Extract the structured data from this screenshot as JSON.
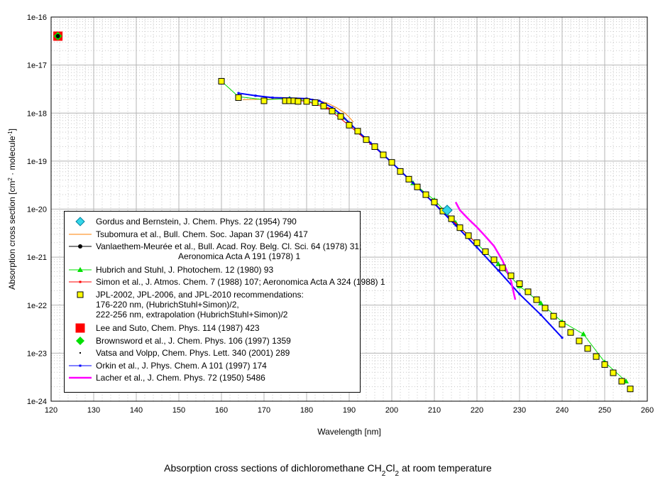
{
  "chart_data": {
    "type": "scatter",
    "title": "Absorption cross sections of dichloromethane CH2Cl2 at room temperature",
    "title_parts": [
      "Absorption cross sections of dichloromethane CH",
      "2",
      "Cl",
      "2",
      " at room temperature"
    ],
    "xlabel": "Wavelength [nm]",
    "ylabel_parts": [
      "Absorption cross section [cm",
      "2",
      " · molecule",
      "-1",
      "]"
    ],
    "xlim": [
      120,
      260
    ],
    "ylim": [
      1e-24,
      1e-16
    ],
    "yscale": "log",
    "grid": true,
    "legend_placement": "lower-left",
    "x_ticks": [
      "120",
      "130",
      "140",
      "150",
      "160",
      "170",
      "180",
      "190",
      "200",
      "210",
      "220",
      "230",
      "240",
      "250",
      "260"
    ],
    "y_ticks": [
      "1e-24",
      "1e-23",
      "1e-22",
      "1e-21",
      "1e-20",
      "1e-19",
      "1e-18",
      "1e-17",
      "1e-16"
    ],
    "series": [
      {
        "name": "Gordus and Bernstein, J. Chem. Phys. 22 (1954) 790",
        "color": "#33d6e8",
        "marker": "diamond",
        "line": false,
        "x": [
          213
        ],
        "y": [
          9.5e-21
        ]
      },
      {
        "name": "Tsubomura et al., Bull. Chem. Soc. Japan 37 (1964) 417",
        "color": "#ff8000",
        "marker": "none",
        "line": true,
        "x": [
          165,
          170,
          175,
          180,
          183,
          185,
          187,
          189,
          190,
          191
        ],
        "y": [
          1.9e-18,
          1.95e-18,
          2e-18,
          1.95e-18,
          1.8e-18,
          1.6e-18,
          1.3e-18,
          1e-18,
          8.2e-19,
          6.5e-19
        ]
      },
      {
        "name": "Vanlaethem-Meurée et al., Bull. Acad. Roy. Belg. Cl. Sci. 64 (1978) 31;\n                                   Aeronomica Acta A 191 (1978) 1",
        "color": "#000000",
        "marker": "dot",
        "line": true,
        "x": [
          121.6
        ],
        "y": [
          4e-17
        ]
      },
      {
        "name": "Hubrich and Stuhl, J. Photochem. 12 (1980) 93",
        "color": "#00e000",
        "marker": "triangle",
        "line": true,
        "x": [
          160,
          164,
          170,
          176,
          180,
          184,
          188,
          192,
          196,
          200,
          205,
          210,
          215,
          220,
          225,
          230,
          235,
          240,
          245,
          250,
          255
        ],
        "y": [
          4.6e-18,
          2.2e-18,
          1.9e-18,
          2e-18,
          1.8e-18,
          1.45e-18,
          8.8e-19,
          4.3e-19,
          2.05e-19,
          9.6e-20,
          3.5e-20,
          1.55e-20,
          5.2e-21,
          1.9e-21,
          7.2e-22,
          2.5e-22,
          1.1e-22,
          4.5e-23,
          2.5e-23,
          6.5e-24,
          2.6e-24
        ]
      },
      {
        "name": "Simon et al., J. Atmos. Chem. 7 (1988) 107; Aeronomica Acta A 324 (1988) 1",
        "color": "#ff0000",
        "marker": "small",
        "line": true,
        "x": [
          176,
          180,
          185,
          190,
          195,
          200,
          205,
          210,
          215,
          220
        ],
        "y": [
          1.9e-18,
          1.75e-18,
          1.25e-18,
          5.5e-19,
          2.3e-19,
          9.2e-20,
          3.5e-20,
          1.35e-20,
          5e-21,
          1.9e-21
        ]
      },
      {
        "name": "JPL-2002, JPL-2006, and JPL-2010 recommendations:\n176-220 nm, (HubrichStuhl+Simon)/2,\n222-256 nm, extrapolation (HubrichStuhl+Simon)/2",
        "color": "#ffff00",
        "marker": "square",
        "line": false,
        "x": [
          160,
          164,
          170,
          175,
          176,
          177,
          178,
          180,
          182,
          184,
          186,
          188,
          190,
          192,
          194,
          196,
          198,
          200,
          202,
          204,
          206,
          208,
          210,
          212,
          214,
          216,
          218,
          220,
          222,
          224,
          226,
          228,
          230,
          232,
          234,
          236,
          238,
          240,
          242,
          244,
          246,
          248,
          250,
          252,
          254,
          256
        ],
        "y": [
          4.6e-18,
          2.1e-18,
          1.8e-18,
          1.8e-18,
          1.8e-18,
          1.8e-18,
          1.75e-18,
          1.75e-18,
          1.65e-18,
          1.4e-18,
          1.1e-18,
          8.5e-19,
          5.6e-19,
          4.2e-19,
          2.8e-19,
          2e-19,
          1.35e-19,
          9.4e-20,
          6.1e-20,
          4.2e-20,
          2.9e-20,
          2e-20,
          1.4e-20,
          9.1e-21,
          6.3e-21,
          4.1e-21,
          2.8e-21,
          2e-21,
          1.3e-21,
          8.8e-22,
          6e-22,
          4.1e-22,
          2.8e-22,
          1.9e-22,
          1.3e-22,
          8.7e-23,
          5.9e-23,
          4e-23,
          2.7e-23,
          1.8e-23,
          1.25e-23,
          8.5e-24,
          5.8e-24,
          3.9e-24,
          2.6e-24,
          1.8e-24
        ]
      },
      {
        "name": "Lee and Suto, Chem. Phys. 114 (1987) 423",
        "color": "#ff0000",
        "marker": "bigsquare",
        "line": false,
        "x": [
          121.6
        ],
        "y": [
          4e-17
        ]
      },
      {
        "name": "Brownsword et al., J. Chem. Phys. 106 (1997) 1359",
        "color": "#00e000",
        "marker": "diamond-small",
        "line": false,
        "x": [
          121.6
        ],
        "y": [
          4e-17
        ]
      },
      {
        "name": "Vatsa and Volpp, Chem. Phys. Lett. 340 (2001) 289",
        "color": "#000000",
        "marker": "tiny",
        "line": false,
        "x": [
          121.6
        ],
        "y": [
          4e-17
        ]
      },
      {
        "name": "Orkin et al., J. Phys. Chem. A 101 (1997) 174",
        "color": "#0000ff",
        "marker": "small",
        "line": true,
        "x": [
          164,
          168,
          172,
          176,
          180,
          183,
          186,
          188,
          190,
          192,
          195,
          200,
          205,
          210,
          215,
          220,
          225,
          230,
          235,
          240
        ],
        "y": [
          2.6e-18,
          2.3e-18,
          2.1e-18,
          2.05e-18,
          2e-18,
          1.8e-18,
          1.3e-18,
          9.5e-19,
          6.3e-19,
          4.2e-19,
          2.4e-19,
          9.3e-20,
          3.5e-20,
          1.3e-20,
          4.6e-21,
          1.6e-21,
          5.3e-22,
          1.7e-22,
          6.3e-23,
          2.1e-23
        ]
      },
      {
        "name": "Lacher et al., J. Chem. Phys. 72 (1950) 5486",
        "color": "#ff00ff",
        "marker": "none",
        "line": true,
        "x": [
          215,
          216,
          218,
          220,
          222,
          224,
          226,
          228,
          229
        ],
        "y": [
          1.4e-20,
          9.5e-21,
          6.2e-21,
          4.2e-21,
          2.7e-21,
          1.7e-21,
          8.5e-22,
          3.2e-22,
          1.3e-22
        ]
      }
    ]
  }
}
